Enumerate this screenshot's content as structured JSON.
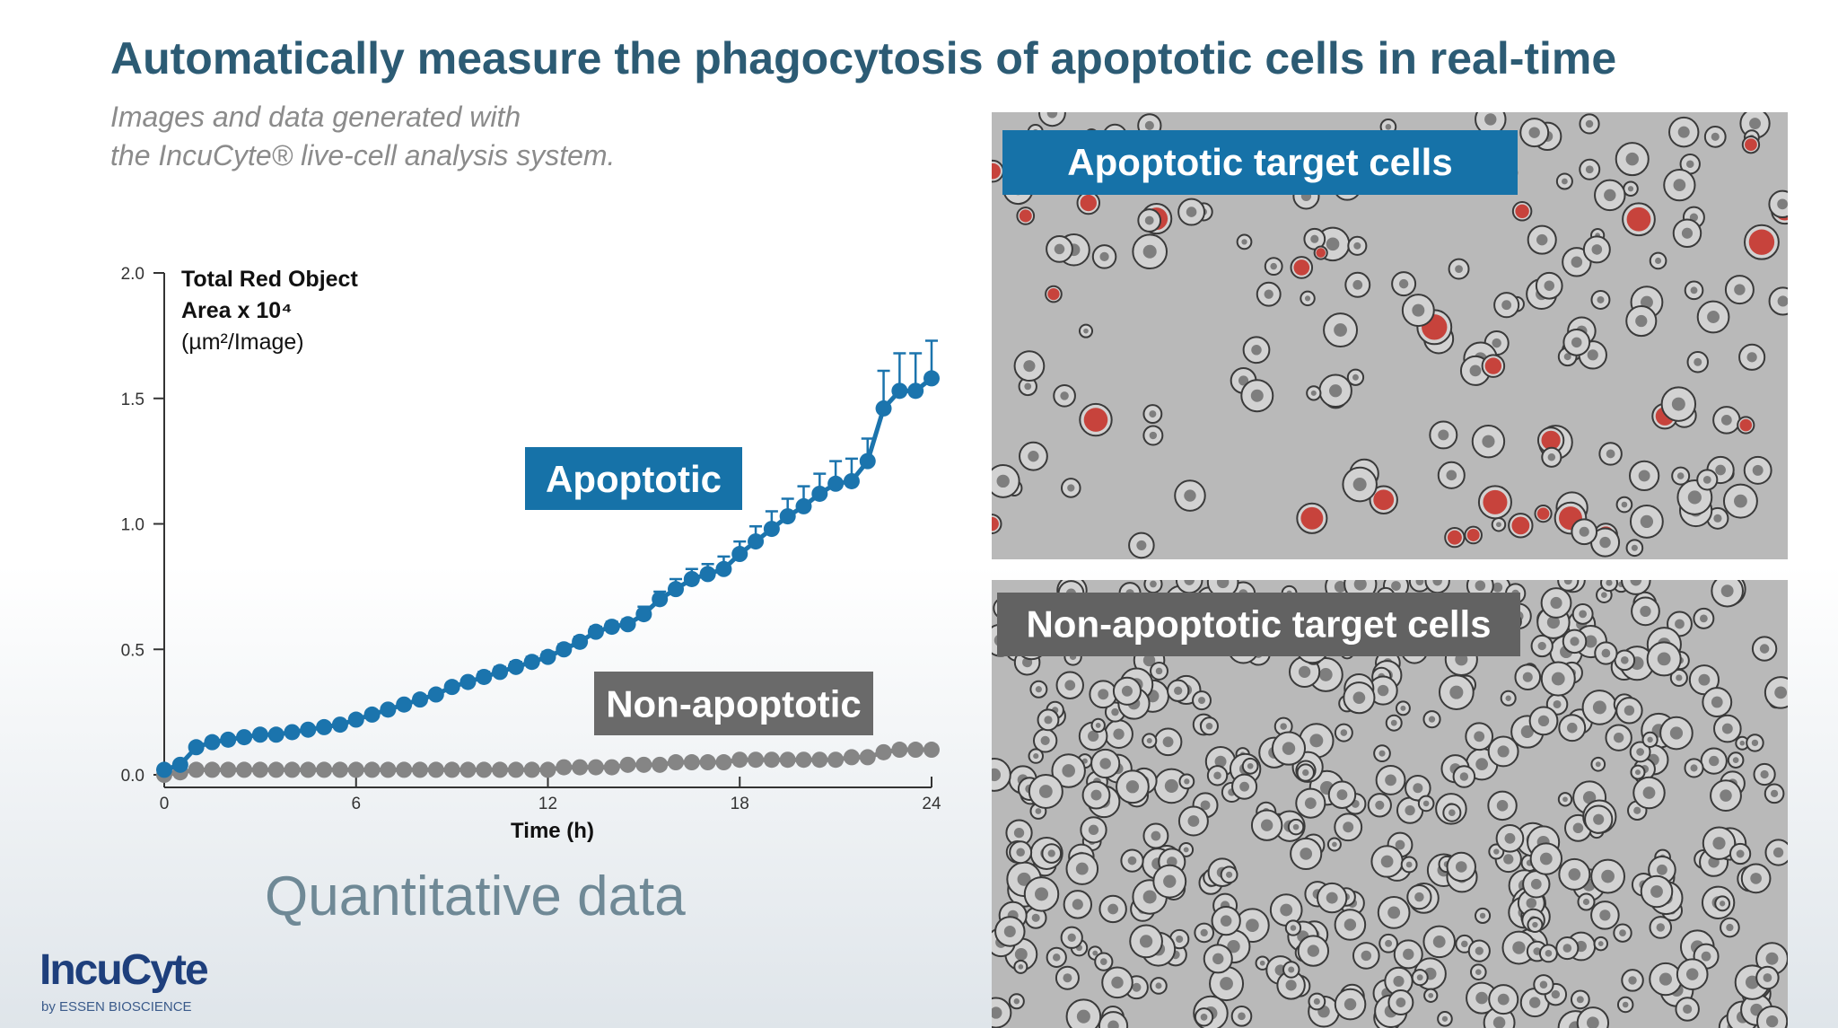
{
  "slide": {
    "title": "Automatically measure the phagocytosis of apoptotic cells in real-time",
    "subtitle": [
      "Images and data generated with",
      "the IncuCyte® live-cell analysis system."
    ],
    "caption": "Quantitative data",
    "logo": "IncuCyte",
    "logo_sub": "by ESSEN BIOSCIENCE"
  },
  "panels": [
    {
      "label": "Apoptotic target cells"
    },
    {
      "label": "Non-apoptotic target cells"
    }
  ],
  "chart_data": {
    "type": "line",
    "ylabel": [
      "Total Red Object",
      "Area x 10⁴",
      "(µm²/Image)"
    ],
    "xlabel": "Time (h)",
    "xlim": [
      0,
      24
    ],
    "ylim": [
      0,
      2
    ],
    "xticks": [
      0,
      6,
      12,
      18,
      24
    ],
    "yticks": [
      {
        "value": 0,
        "label": "0.0"
      },
      0.5,
      {
        "value": 1,
        "label": "1.0"
      },
      1.5,
      {
        "value": 2,
        "label": "2.0"
      }
    ],
    "x": [
      0,
      0.5,
      1,
      1.5,
      2,
      2.5,
      3,
      3.5,
      4,
      4.5,
      5,
      5.5,
      6,
      6.5,
      7,
      7.5,
      8,
      8.5,
      9,
      9.5,
      10,
      10.5,
      11,
      11.5,
      12,
      12.5,
      13,
      13.5,
      14,
      14.5,
      15,
      15.5,
      16,
      16.5,
      17,
      17.5,
      18,
      18.5,
      19,
      19.5,
      20,
      20.5,
      21,
      21.5,
      22,
      22.5,
      23,
      23.5,
      24
    ],
    "series": [
      {
        "name": "Apoptotic",
        "color": "#1b74ad",
        "values": [
          0.02,
          0.04,
          0.11,
          0.13,
          0.14,
          0.15,
          0.16,
          0.16,
          0.17,
          0.18,
          0.19,
          0.2,
          0.22,
          0.24,
          0.26,
          0.28,
          0.3,
          0.32,
          0.35,
          0.37,
          0.39,
          0.41,
          0.43,
          0.45,
          0.47,
          0.5,
          0.53,
          0.57,
          0.59,
          0.6,
          0.64,
          0.7,
          0.74,
          0.78,
          0.8,
          0.82,
          0.88,
          0.93,
          0.98,
          1.03,
          1.07,
          1.12,
          1.16,
          1.17,
          1.25,
          1.46,
          1.53,
          1.53,
          1.58
        ],
        "errors": [
          0.01,
          0.01,
          0.01,
          0.01,
          0.01,
          0.01,
          0.01,
          0.01,
          0.01,
          0.01,
          0.01,
          0.01,
          0.01,
          0.01,
          0.01,
          0.01,
          0.01,
          0.01,
          0.01,
          0.01,
          0.02,
          0.02,
          0.02,
          0.02,
          0.02,
          0.02,
          0.02,
          0.02,
          0.02,
          0.02,
          0.03,
          0.03,
          0.04,
          0.04,
          0.04,
          0.05,
          0.05,
          0.06,
          0.07,
          0.07,
          0.08,
          0.08,
          0.09,
          0.09,
          0.09,
          0.15,
          0.15,
          0.15,
          0.15
        ]
      },
      {
        "name": "Non-apoptotic",
        "color": "#858585",
        "values": [
          0.0,
          0.01,
          0.02,
          0.02,
          0.02,
          0.02,
          0.02,
          0.02,
          0.02,
          0.02,
          0.02,
          0.02,
          0.02,
          0.02,
          0.02,
          0.02,
          0.02,
          0.02,
          0.02,
          0.02,
          0.02,
          0.02,
          0.02,
          0.02,
          0.02,
          0.03,
          0.03,
          0.03,
          0.03,
          0.04,
          0.04,
          0.04,
          0.05,
          0.05,
          0.05,
          0.05,
          0.06,
          0.06,
          0.06,
          0.06,
          0.06,
          0.06,
          0.06,
          0.07,
          0.07,
          0.09,
          0.1,
          0.1,
          0.1
        ]
      }
    ]
  }
}
